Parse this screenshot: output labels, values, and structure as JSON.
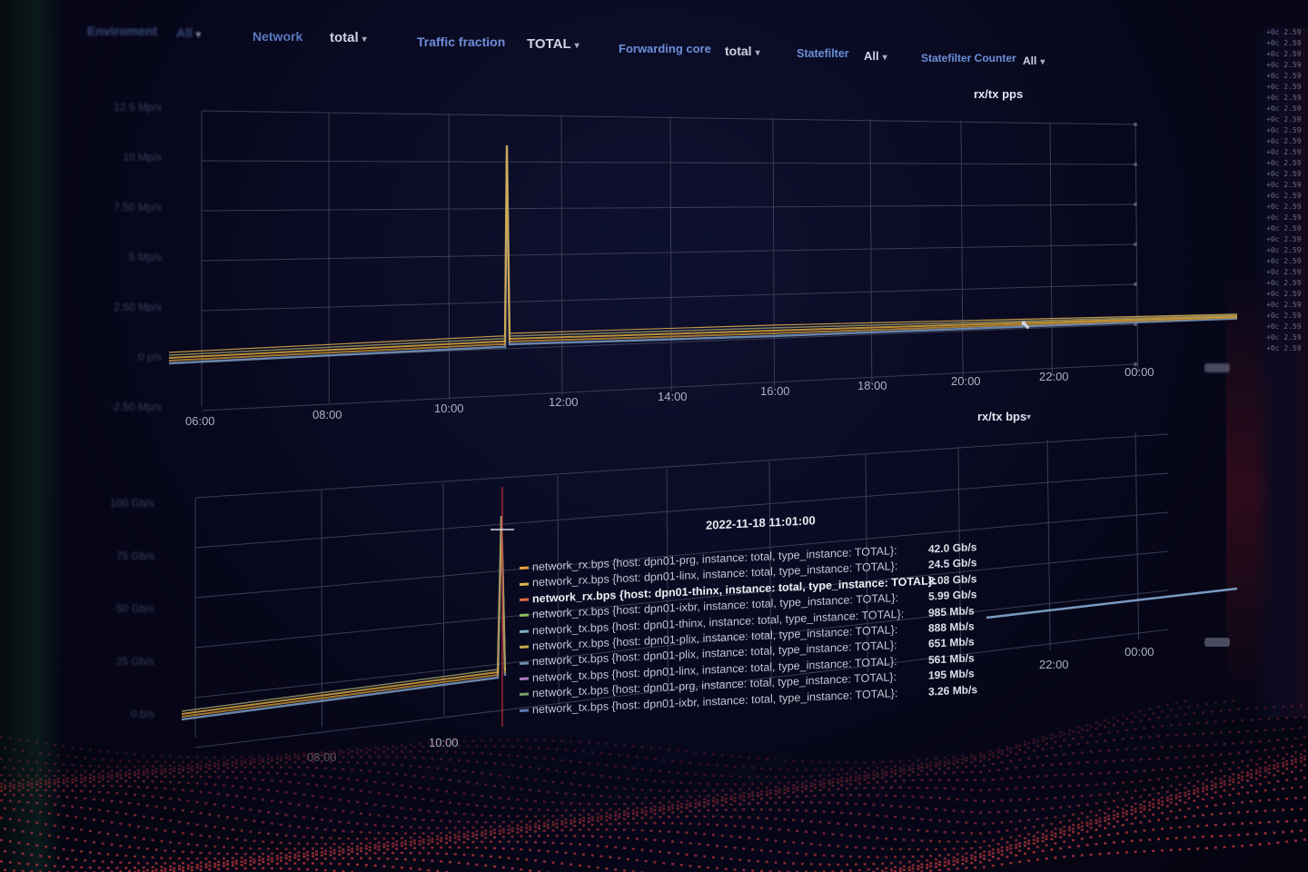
{
  "toolbar": {
    "faded_label": "Enviroment",
    "faded_value": "All",
    "network_label": "Network",
    "network_value": "total",
    "traffic_label": "Traffic fraction",
    "traffic_value": "TOTAL",
    "core_label": "Forwarding core",
    "core_value": "total",
    "statefilter_label": "Statefilter",
    "statefilter_value": "All",
    "counter_label": "Statefilter Counter",
    "counter_value": "All"
  },
  "panels": {
    "pps_title": "rx/tx pps",
    "bps_title": "rx/tx bps",
    "pps_x_ticks": [
      "06:00",
      "08:00",
      "10:00",
      "12:00",
      "14:00",
      "16:00",
      "18:00",
      "20:00",
      "22:00",
      "00:00"
    ],
    "bps_x_ticks": [
      "08:00",
      "10:00",
      "22:00",
      "00:00"
    ],
    "pps_y_ticks": [
      "12.5 Mp/s",
      "10 Mp/s",
      "7.50 Mp/s",
      "5 Mp/s",
      "2.50 Mp/s",
      "0 p/s",
      "-2.50 Mp/s"
    ],
    "bps_y_ticks": [
      "100 Gb/s",
      "75 Gb/s",
      "50 Gb/s",
      "25 Gb/s",
      "0 b/s"
    ]
  },
  "tooltip": {
    "time": "2022-11-18 11:01:00",
    "rows": [
      {
        "name": "network_rx.bps {host: dpn01-prg, instance: total, type_instance: TOTAL}:",
        "value": "42.0 Gb/s",
        "color": "#e8a23a",
        "bold": false
      },
      {
        "name": "network_rx.bps {host: dpn01-linx, instance: total, type_instance: TOTAL}:",
        "value": "24.5 Gb/s",
        "color": "#d9b84a",
        "bold": false
      },
      {
        "name": "network_rx.bps {host: dpn01-thinx, instance: total, type_instance: TOTAL}:",
        "value": "8.08 Gb/s",
        "color": "#e0663c",
        "bold": true
      },
      {
        "name": "network_rx.bps {host: dpn01-ixbr, instance: total, type_instance: TOTAL}:",
        "value": "5.99 Gb/s",
        "color": "#8fbf5a",
        "bold": false
      },
      {
        "name": "network_tx.bps {host: dpn01-thinx, instance: total, type_instance: TOTAL}:",
        "value": "985 Mb/s",
        "color": "#7fb0c0",
        "bold": false
      },
      {
        "name": "network_rx.bps {host: dpn01-plix, instance: total, type_instance: TOTAL}:",
        "value": "888 Mb/s",
        "color": "#c8a84a",
        "bold": false
      },
      {
        "name": "network_tx.bps {host: dpn01-plix, instance: total, type_instance: TOTAL}:",
        "value": "651 Mb/s",
        "color": "#6f8fb0",
        "bold": false
      },
      {
        "name": "network_tx.bps {host: dpn01-linx, instance: total, type_instance: TOTAL}:",
        "value": "561 Mb/s",
        "color": "#b07ac0",
        "bold": false
      },
      {
        "name": "network_tx.bps {host: dpn01-prg, instance: total, type_instance: TOTAL}:",
        "value": "195 Mb/s",
        "color": "#7aa06a",
        "bold": false
      },
      {
        "name": "network_tx.bps {host: dpn01-ixbr, instance: total, type_instance: TOTAL}:",
        "value": "3.26 Mb/s",
        "color": "#5a7ab0",
        "bold": false
      }
    ]
  },
  "side_log": {
    "lines": [
      "2.59",
      "2.59",
      "2.59",
      "2.59",
      "2.59",
      "2.59",
      "2.59",
      "2.59",
      "2.59",
      "2.59",
      "2.59",
      "2.59",
      "2.59",
      "2.59",
      "2.59",
      "2.59",
      "2.59",
      "2.59",
      "2.59",
      "2.59",
      "2.59",
      "2.59",
      "2.59",
      "2.59",
      "2.59",
      "2.59",
      "2.59",
      "2.59",
      "2.59",
      "2.59"
    ]
  },
  "colors": {
    "grid": "#3a3d52",
    "series_orange": "#d99a3a",
    "series_blue": "#7a9ac0",
    "terrain": "#b0343a"
  }
}
